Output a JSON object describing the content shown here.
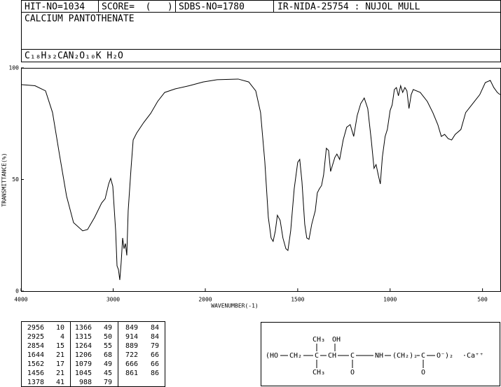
{
  "header": {
    "hit_no": "HIT-NO=1034",
    "score": "SCORE=  (   )",
    "sdbs_no": "SDBS-NO=1780",
    "method": "IR-NIDA-25754 : NUJOL MULL",
    "name": "CALCIUM PANTOTHENATE",
    "formula": "C₁₈H₃₂CAN₂O₁₀K H₂O"
  },
  "chart_data": {
    "type": "line",
    "xlabel": "WAVENUMBER(-1)",
    "ylabel": "TRANSMITTANCE(%)",
    "xlim": [
      4000,
      400
    ],
    "xbreak": 2000,
    "xticks": [
      4000,
      3000,
      2000,
      1500,
      1000,
      500
    ],
    "ylim": [
      0,
      100
    ],
    "yticks": [
      0,
      50,
      100
    ],
    "color": "#000000",
    "x": [
      4000,
      3848,
      3734,
      3658,
      3582,
      3506,
      3430,
      3331,
      3278,
      3202,
      3125,
      3087,
      3049,
      3027,
      3004,
      2973,
      2958,
      2943,
      2928,
      2913,
      2897,
      2882,
      2867,
      2852,
      2837,
      2806,
      2783,
      2745,
      2669,
      2593,
      2517,
      2441,
      2327,
      2175,
      2023,
      1936,
      1822,
      1765,
      1727,
      1701,
      1678,
      1659,
      1644,
      1633,
      1621,
      1610,
      1595,
      1580,
      1564,
      1553,
      1538,
      1519,
      1500,
      1489,
      1477,
      1462,
      1451,
      1439,
      1424,
      1405,
      1394,
      1383,
      1371,
      1360,
      1345,
      1333,
      1322,
      1299,
      1288,
      1273,
      1254,
      1235,
      1216,
      1197,
      1178,
      1159,
      1140,
      1121,
      1102,
      1087,
      1076,
      1064,
      1053,
      1042,
      1027,
      1015,
      1000,
      989,
      977,
      966,
      955,
      943,
      932,
      920,
      909,
      898,
      886,
      875,
      837,
      799,
      769,
      742,
      723,
      705,
      686,
      667,
      648,
      617,
      591,
      553,
      515,
      485,
      458,
      439,
      420,
      405
    ],
    "values": [
      92.5,
      92,
      89.7,
      80,
      61,
      42.6,
      30.7,
      27,
      27.6,
      33,
      39.5,
      41.4,
      48,
      50.5,
      47,
      27,
      11.3,
      9.7,
      5,
      12.9,
      23.8,
      19,
      21.3,
      16,
      36,
      55,
      67.7,
      70.8,
      75.5,
      79.6,
      85,
      89,
      90.6,
      92,
      93.7,
      94.7,
      95,
      93.7,
      89.7,
      80,
      58,
      33,
      23.8,
      22.3,
      27,
      34,
      31.7,
      23.8,
      19,
      18.2,
      27,
      45.8,
      57.7,
      59,
      49,
      30,
      23.8,
      23.2,
      30,
      36,
      44,
      45.8,
      47.3,
      52,
      64,
      63,
      53.6,
      59.9,
      61.4,
      59,
      67.7,
      73.4,
      74.6,
      69.3,
      78.7,
      84,
      86.5,
      81.8,
      67.7,
      55,
      56.7,
      52,
      48,
      60,
      69.3,
      72.4,
      80.9,
      83.4,
      90.3,
      91.2,
      87.5,
      92,
      89,
      91.2,
      89.7,
      81.8,
      88,
      90.3,
      89,
      85,
      80,
      74.6,
      69.3,
      70.2,
      68.3,
      67.7,
      70.2,
      72.4,
      80,
      84,
      88,
      93.4,
      94.4,
      91.2,
      89,
      88
    ]
  },
  "peak_table": [
    [
      [
        2956,
        10
      ],
      [
        2925,
        4
      ],
      [
        2854,
        15
      ],
      [
        1644,
        21
      ],
      [
        1562,
        17
      ],
      [
        1456,
        21
      ],
      [
        1378,
        41
      ]
    ],
    [
      [
        1366,
        49
      ],
      [
        1315,
        50
      ],
      [
        1264,
        55
      ],
      [
        1206,
        68
      ],
      [
        1079,
        49
      ],
      [
        1045,
        45
      ],
      [
        988,
        79
      ]
    ],
    [
      [
        849,
        84
      ],
      [
        914,
        84
      ],
      [
        889,
        79
      ],
      [
        722,
        66
      ],
      [
        666,
        66
      ],
      [
        861,
        86
      ]
    ]
  ],
  "structure": {
    "main": [
      "(HO",
      "CH₂",
      "C",
      "CH",
      "C",
      "NH",
      "(CH₂)₂",
      "C",
      "O⁻)₂",
      "·Ca⁺⁺"
    ],
    "top": [
      "CH₃",
      "OH"
    ],
    "bottom": [
      "CH₃",
      "O",
      "O"
    ]
  }
}
